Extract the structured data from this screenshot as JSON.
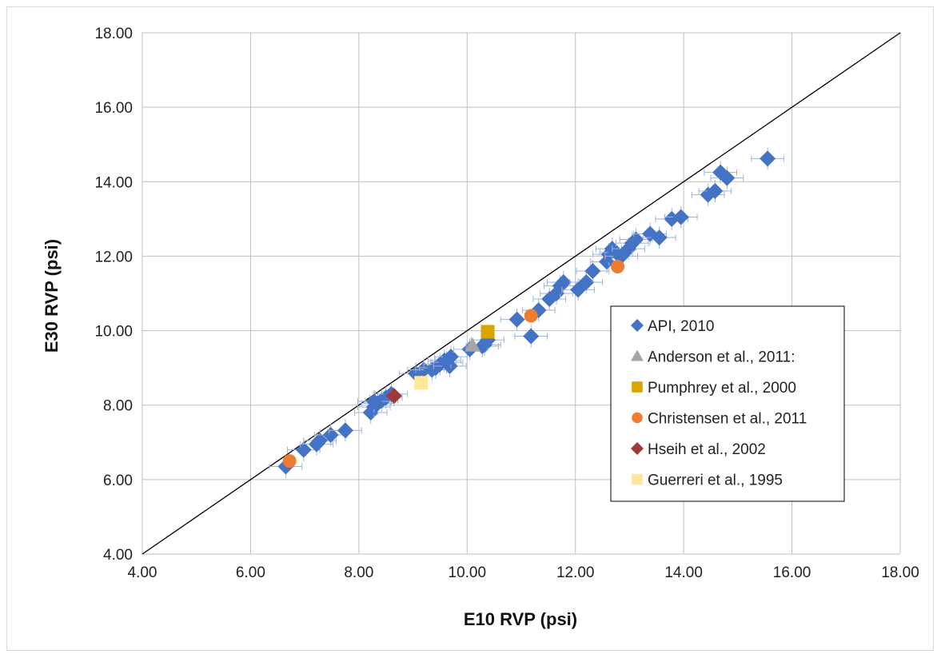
{
  "chart_data": {
    "type": "scatter",
    "title": "",
    "xlabel": "E10 RVP (psi)",
    "ylabel": "E30 RVP (psi)",
    "xlim": [
      4,
      18
    ],
    "ylim": [
      4,
      18
    ],
    "x_ticks": [
      "4.00",
      "6.00",
      "8.00",
      "10.00",
      "12.00",
      "14.00",
      "16.00",
      "18.00"
    ],
    "y_ticks": [
      "4.00",
      "6.00",
      "8.00",
      "10.00",
      "12.00",
      "14.00",
      "16.00",
      "18.00"
    ],
    "grid": true,
    "legend_position": "right",
    "reference_line": {
      "from": [
        4,
        4
      ],
      "to": [
        18,
        18
      ]
    },
    "series": [
      {
        "name": "API, 2010",
        "marker": "diamond",
        "color": "#4472C4",
        "error_bar_color": "#9DB3DD",
        "points": [
          [
            6.65,
            6.35
          ],
          [
            6.98,
            6.8
          ],
          [
            7.22,
            6.95
          ],
          [
            7.28,
            7.05
          ],
          [
            7.48,
            7.2
          ],
          [
            7.75,
            7.32
          ],
          [
            8.22,
            7.8
          ],
          [
            8.28,
            7.95
          ],
          [
            8.35,
            8.05
          ],
          [
            8.42,
            8.12
          ],
          [
            8.5,
            8.2
          ],
          [
            8.6,
            8.3
          ],
          [
            8.28,
            8.1
          ],
          [
            9.05,
            8.85
          ],
          [
            9.2,
            8.95
          ],
          [
            9.35,
            8.95
          ],
          [
            9.42,
            9.0
          ],
          [
            9.5,
            9.1
          ],
          [
            9.58,
            9.2
          ],
          [
            9.62,
            9.15
          ],
          [
            9.68,
            9.05
          ],
          [
            9.7,
            9.3
          ],
          [
            10.05,
            9.5
          ],
          [
            10.28,
            9.58
          ],
          [
            10.32,
            9.62
          ],
          [
            10.38,
            9.75
          ],
          [
            10.92,
            10.3
          ],
          [
            11.18,
            9.85
          ],
          [
            11.32,
            10.55
          ],
          [
            11.52,
            10.85
          ],
          [
            11.65,
            11.0
          ],
          [
            11.72,
            11.2
          ],
          [
            11.78,
            11.3
          ],
          [
            12.05,
            11.1
          ],
          [
            12.2,
            11.3
          ],
          [
            12.32,
            11.6
          ],
          [
            12.58,
            11.85
          ],
          [
            12.62,
            12.05
          ],
          [
            12.68,
            12.2
          ],
          [
            12.75,
            12.1
          ],
          [
            12.85,
            12.0
          ],
          [
            12.98,
            12.2
          ],
          [
            13.05,
            12.35
          ],
          [
            13.12,
            12.45
          ],
          [
            13.38,
            12.6
          ],
          [
            13.55,
            12.5
          ],
          [
            13.78,
            13.0
          ],
          [
            13.95,
            13.05
          ],
          [
            14.45,
            13.65
          ],
          [
            14.58,
            13.75
          ],
          [
            14.68,
            14.25
          ],
          [
            14.8,
            14.1
          ],
          [
            15.55,
            14.62
          ]
        ]
      },
      {
        "name": "Anderson et al., 2011:",
        "marker": "triangle",
        "color": "#A5A5A5",
        "points": [
          [
            10.1,
            9.6
          ]
        ]
      },
      {
        "name": "Pumphrey et al., 2000",
        "marker": "square",
        "color": "#D9A400",
        "points": [
          [
            10.38,
            9.97
          ]
        ]
      },
      {
        "name": "Christensen et al., 2011",
        "marker": "circle",
        "color": "#ED7D31",
        "points": [
          [
            6.72,
            6.5
          ],
          [
            11.18,
            10.4
          ],
          [
            12.78,
            11.72
          ]
        ]
      },
      {
        "name": "Hseih et al., 2002",
        "marker": "diamond",
        "color": "#9E3A38",
        "points": [
          [
            8.65,
            8.25
          ]
        ]
      },
      {
        "name": "Guerreri et al., 1995",
        "marker": "square",
        "color": "#FFE699",
        "points": [
          [
            9.15,
            8.6
          ]
        ]
      }
    ]
  }
}
